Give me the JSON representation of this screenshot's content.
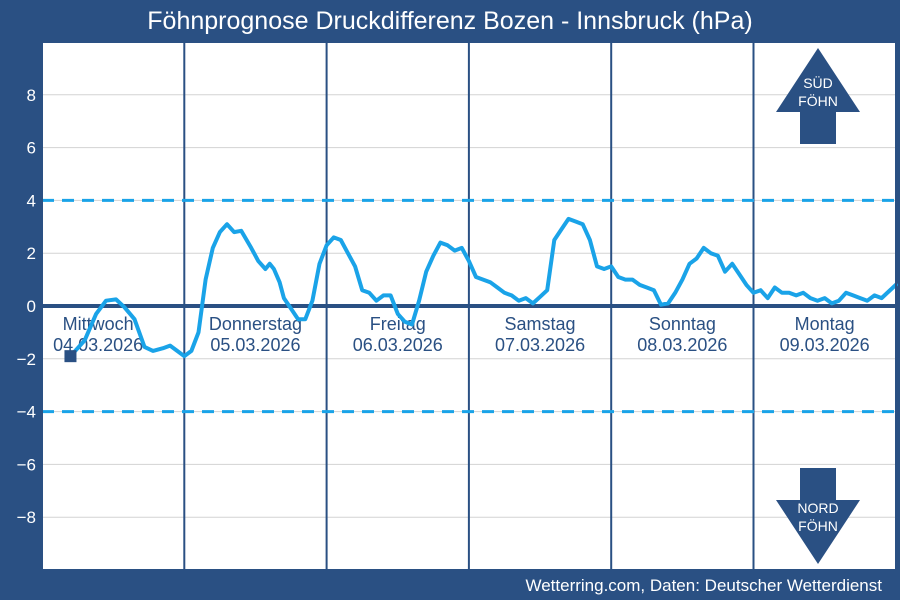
{
  "title": "Föhnprognose Druckdifferenz Bozen - Innsbruck (hPa)",
  "source": "Wetterring.com, Daten: Deutscher Wetterdienst",
  "arrows": {
    "up": {
      "line1": "SÜD",
      "line2": "FÖHN"
    },
    "down": {
      "line1": "NORD",
      "line2": "FÖHN"
    }
  },
  "colors": {
    "background": "#2a5083",
    "plot": "#ffffff",
    "series": "#1aa3e8",
    "threshold": "#1aa3e8",
    "zero_line": "#2a5083",
    "grid": "#d3d3d3"
  },
  "chart_data": {
    "type": "line",
    "title": "Föhnprognose Druckdifferenz Bozen - Innsbruck (hPa)",
    "xlabel": "",
    "ylabel": "",
    "ylim": [
      -10,
      10
    ],
    "xlim": [
      0,
      6
    ],
    "y_ticks": [
      -8,
      -6,
      -4,
      -2,
      0,
      2,
      4,
      6,
      8
    ],
    "y_tick_labels": [
      "−8",
      "−6",
      "−4",
      "−2",
      "0",
      "2",
      "4",
      "6",
      "8"
    ],
    "grid": true,
    "thresholds": [
      4,
      -4
    ],
    "days": [
      {
        "name": "Mittwoch",
        "date": "04.03.2026"
      },
      {
        "name": "Donnerstag",
        "date": "05.03.2026"
      },
      {
        "name": "Freitag",
        "date": "06.03.2026"
      },
      {
        "name": "Samstag",
        "date": "07.03.2026"
      },
      {
        "name": "Sonntag",
        "date": "08.03.2026"
      },
      {
        "name": "Montag",
        "date": "09.03.2026"
      }
    ],
    "series": [
      {
        "x": [
          0.2,
          0.3,
          0.38,
          0.45,
          0.52,
          0.58,
          0.65,
          0.72,
          0.78,
          0.85,
          0.9,
          0.95,
          1.0,
          1.05,
          1.1,
          1.15,
          1.2,
          1.25,
          1.3,
          1.35,
          1.4,
          1.47,
          1.52,
          1.57,
          1.6,
          1.63,
          1.67,
          1.7,
          1.75,
          1.8,
          1.85,
          1.9,
          1.95,
          2.0,
          2.05,
          2.1,
          2.15,
          2.2,
          2.25,
          2.3,
          2.35,
          2.4,
          2.45,
          2.5,
          2.55,
          2.6,
          2.65,
          2.7,
          2.75,
          2.8,
          2.85,
          2.9,
          2.95,
          3.0,
          3.05,
          3.1,
          3.15,
          3.2,
          3.25,
          3.3,
          3.35,
          3.4,
          3.45,
          3.5,
          3.55,
          3.6,
          3.65,
          3.7,
          3.75,
          3.8,
          3.85,
          3.9,
          3.95,
          4.0,
          4.05,
          4.1,
          4.15,
          4.2,
          4.25,
          4.3,
          4.35,
          4.4,
          4.45,
          4.5,
          4.55,
          4.6,
          4.65,
          4.7,
          4.75,
          4.8,
          4.85,
          4.9,
          4.95,
          5.0,
          5.05,
          5.1,
          5.15,
          5.2,
          5.25,
          5.3,
          5.35,
          5.4,
          5.45,
          5.5,
          5.55,
          5.6,
          5.65,
          5.7,
          5.75,
          5.8,
          5.85,
          5.9,
          6.0
        ],
        "values": [
          -1.9,
          -1.3,
          -0.3,
          0.2,
          0.25,
          -0.05,
          -0.5,
          -1.55,
          -1.7,
          -1.6,
          -1.5,
          -1.7,
          -1.9,
          -1.7,
          -1.0,
          1.0,
          2.2,
          2.8,
          3.1,
          2.8,
          2.85,
          2.2,
          1.7,
          1.4,
          1.6,
          1.4,
          0.9,
          0.3,
          -0.1,
          -0.5,
          -0.5,
          0.2,
          1.6,
          2.3,
          2.6,
          2.5,
          2.0,
          1.5,
          0.6,
          0.5,
          0.2,
          0.4,
          0.4,
          -0.3,
          -0.6,
          -0.7,
          0.2,
          1.3,
          1.9,
          2.4,
          2.3,
          2.1,
          2.2,
          1.7,
          1.1,
          1.0,
          0.9,
          0.7,
          0.5,
          0.4,
          0.2,
          0.3,
          0.1,
          0.35,
          0.6,
          2.5,
          2.9,
          3.3,
          3.2,
          3.1,
          2.5,
          1.5,
          1.4,
          1.5,
          1.1,
          1.0,
          1.0,
          0.8,
          0.7,
          0.6,
          0.05,
          0.1,
          0.5,
          1.0,
          1.6,
          1.8,
          2.2,
          2.0,
          1.9,
          1.3,
          1.6,
          1.2,
          0.8,
          0.5,
          0.6,
          0.3,
          0.7,
          0.5,
          0.5,
          0.4,
          0.5,
          0.3,
          0.2,
          0.3,
          0.1,
          0.2,
          0.5,
          0.4,
          0.3,
          0.2,
          0.4,
          0.3,
          0.8
        ]
      }
    ]
  }
}
